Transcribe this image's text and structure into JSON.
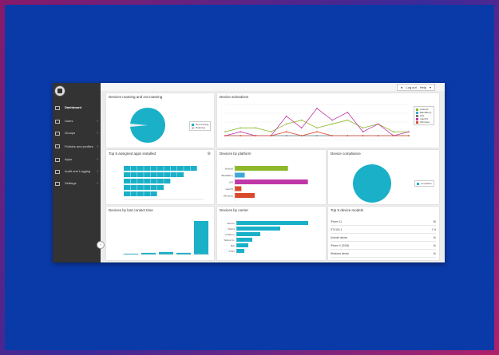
{
  "colors": {
    "accent": "#1ab0c8",
    "sidebar": "#333333",
    "outer_bg": "#0a3aa8"
  },
  "sidebar": {
    "items": [
      {
        "label": "Dashboard",
        "icon": "dashboard-icon"
      },
      {
        "label": "Users",
        "icon": "users-icon"
      },
      {
        "label": "Groups",
        "icon": "groups-icon"
      },
      {
        "label": "Policies and profiles",
        "icon": "policies-icon"
      },
      {
        "label": "Apps",
        "icon": "apps-icon"
      },
      {
        "label": "Audit and Logging",
        "icon": "audit-icon"
      },
      {
        "label": "Settings",
        "icon": "gear-icon"
      }
    ]
  },
  "topbar": {
    "logout": "Log out",
    "help": "Help"
  },
  "panels": {
    "roaming": {
      "title": "Devices roaming and not roaming",
      "legend": [
        "Not roaming",
        "Roaming"
      ]
    },
    "activations": {
      "title": "Device activations",
      "legend": [
        "Android",
        "BlackBerry",
        "iOS",
        "macOS",
        "Windows"
      ]
    },
    "apps": {
      "title": "Top 5 assigned apps installed"
    },
    "platform": {
      "title": "Devices by platform",
      "categories": [
        "Android",
        "BlackBerry",
        "iOS",
        "macOS",
        "Windows"
      ]
    },
    "compliance": {
      "title": "Device compliance",
      "legend": [
        "Compliant"
      ]
    },
    "contact": {
      "title": "Devices by last contact time"
    },
    "carrier": {
      "title": "Devices by carrier",
      "categories": [
        "Verizon",
        "Telstra",
        "vodafone",
        "Telstra Int.",
        "Bell",
        "AT&T"
      ]
    },
    "models": {
      "title": "Top 5 device models",
      "rows": [
        {
          "name": "iPhone 11",
          "value": "36"
        },
        {
          "name": "STV100-1",
          "value": "1 %"
        },
        {
          "name": "Android device",
          "value": "1k"
        },
        {
          "name": "iPhone X (GSM)",
          "value": "1k"
        },
        {
          "name": "Windows device",
          "value": "1k"
        }
      ]
    }
  },
  "chart_data": [
    {
      "type": "pie",
      "title": "Devices roaming and not roaming",
      "labels": [
        "Not roaming",
        "Roaming"
      ],
      "values": [
        97,
        3
      ]
    },
    {
      "type": "line",
      "title": "Device activations",
      "series": [
        {
          "name": "Android",
          "values": [
            2,
            3,
            3,
            2,
            4,
            5,
            3,
            4,
            5,
            3,
            4,
            2,
            2
          ]
        },
        {
          "name": "BlackBerry",
          "values": [
            1,
            1,
            1,
            1,
            1,
            1,
            1,
            1,
            1,
            1,
            1,
            1,
            1
          ]
        },
        {
          "name": "iOS",
          "values": [
            1,
            1,
            1,
            1,
            1,
            1,
            1,
            1,
            1,
            1,
            1,
            1,
            1
          ]
        },
        {
          "name": "macOS",
          "values": [
            1,
            2,
            1,
            1,
            6,
            3,
            8,
            5,
            7,
            2,
            4,
            1,
            2
          ]
        },
        {
          "name": "Windows",
          "values": [
            1,
            1,
            1,
            1,
            2,
            1,
            2,
            1,
            1,
            1,
            1,
            1,
            1
          ]
        }
      ]
    },
    {
      "type": "bar",
      "title": "Top 5 assigned apps installed",
      "values": [
        11,
        9,
        7,
        6,
        5
      ]
    },
    {
      "type": "bar",
      "title": "Devices by platform",
      "categories": [
        "Android",
        "BlackBerry",
        "iOS",
        "macOS",
        "Windows"
      ],
      "values": [
        80,
        15,
        110,
        10,
        30
      ]
    },
    {
      "type": "pie",
      "title": "Device compliance",
      "labels": [
        "Compliant"
      ],
      "values": [
        100
      ]
    },
    {
      "type": "bar",
      "title": "Devices by last contact time",
      "values": [
        1,
        2,
        3,
        2,
        40
      ]
    },
    {
      "type": "bar",
      "title": "Devices by carrier",
      "categories": [
        "Verizon",
        "Telstra",
        "vodafone",
        "Telstra Int.",
        "Bell",
        "AT&T"
      ],
      "values": [
        90,
        55,
        30,
        20,
        15,
        10
      ]
    }
  ]
}
